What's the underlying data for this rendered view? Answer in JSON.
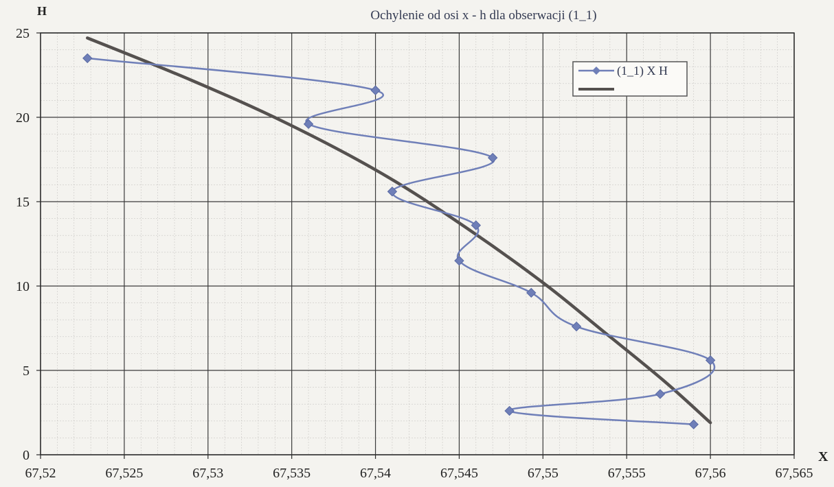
{
  "chart_data": {
    "type": "line",
    "title": "Ochylenie  od osi x - h dla obserwacji (1_1)",
    "xlabel": "X",
    "ylabel": "H",
    "xlim": [
      67.52,
      67.565
    ],
    "ylim": [
      0,
      25
    ],
    "x_ticks": [
      "67,52",
      "67,525",
      "67,53",
      "67,535",
      "67,54",
      "67,545",
      "67,55",
      "67,555",
      "67,56",
      "67,565"
    ],
    "y_ticks": [
      "0",
      "5",
      "10",
      "15",
      "20",
      "25"
    ],
    "grid": true,
    "legend_position": "top-right",
    "series": [
      {
        "name": "(1_1) X H",
        "color": "#6f7fb8",
        "marker": "diamond",
        "points": [
          [
            67.559,
            1.8
          ],
          [
            67.548,
            2.6
          ],
          [
            67.557,
            3.6
          ],
          [
            67.56,
            5.6
          ],
          [
            67.552,
            7.6
          ],
          [
            67.5493,
            9.6
          ],
          [
            67.545,
            11.5
          ],
          [
            67.546,
            13.6
          ],
          [
            67.541,
            15.6
          ],
          [
            67.547,
            17.6
          ],
          [
            67.536,
            19.6
          ],
          [
            67.54,
            21.6
          ],
          [
            67.5228,
            23.5
          ]
        ]
      },
      {
        "name": "",
        "color": "#55514f",
        "marker": "none",
        "points": [
          [
            67.56,
            1.9
          ],
          [
            67.5572,
            4.4
          ],
          [
            67.5535,
            7.4
          ],
          [
            67.55,
            10.2
          ],
          [
            67.5455,
            13.4
          ],
          [
            67.5405,
            16.6
          ],
          [
            67.5348,
            19.6
          ],
          [
            67.529,
            22.2
          ],
          [
            67.5228,
            24.7
          ]
        ]
      }
    ]
  }
}
